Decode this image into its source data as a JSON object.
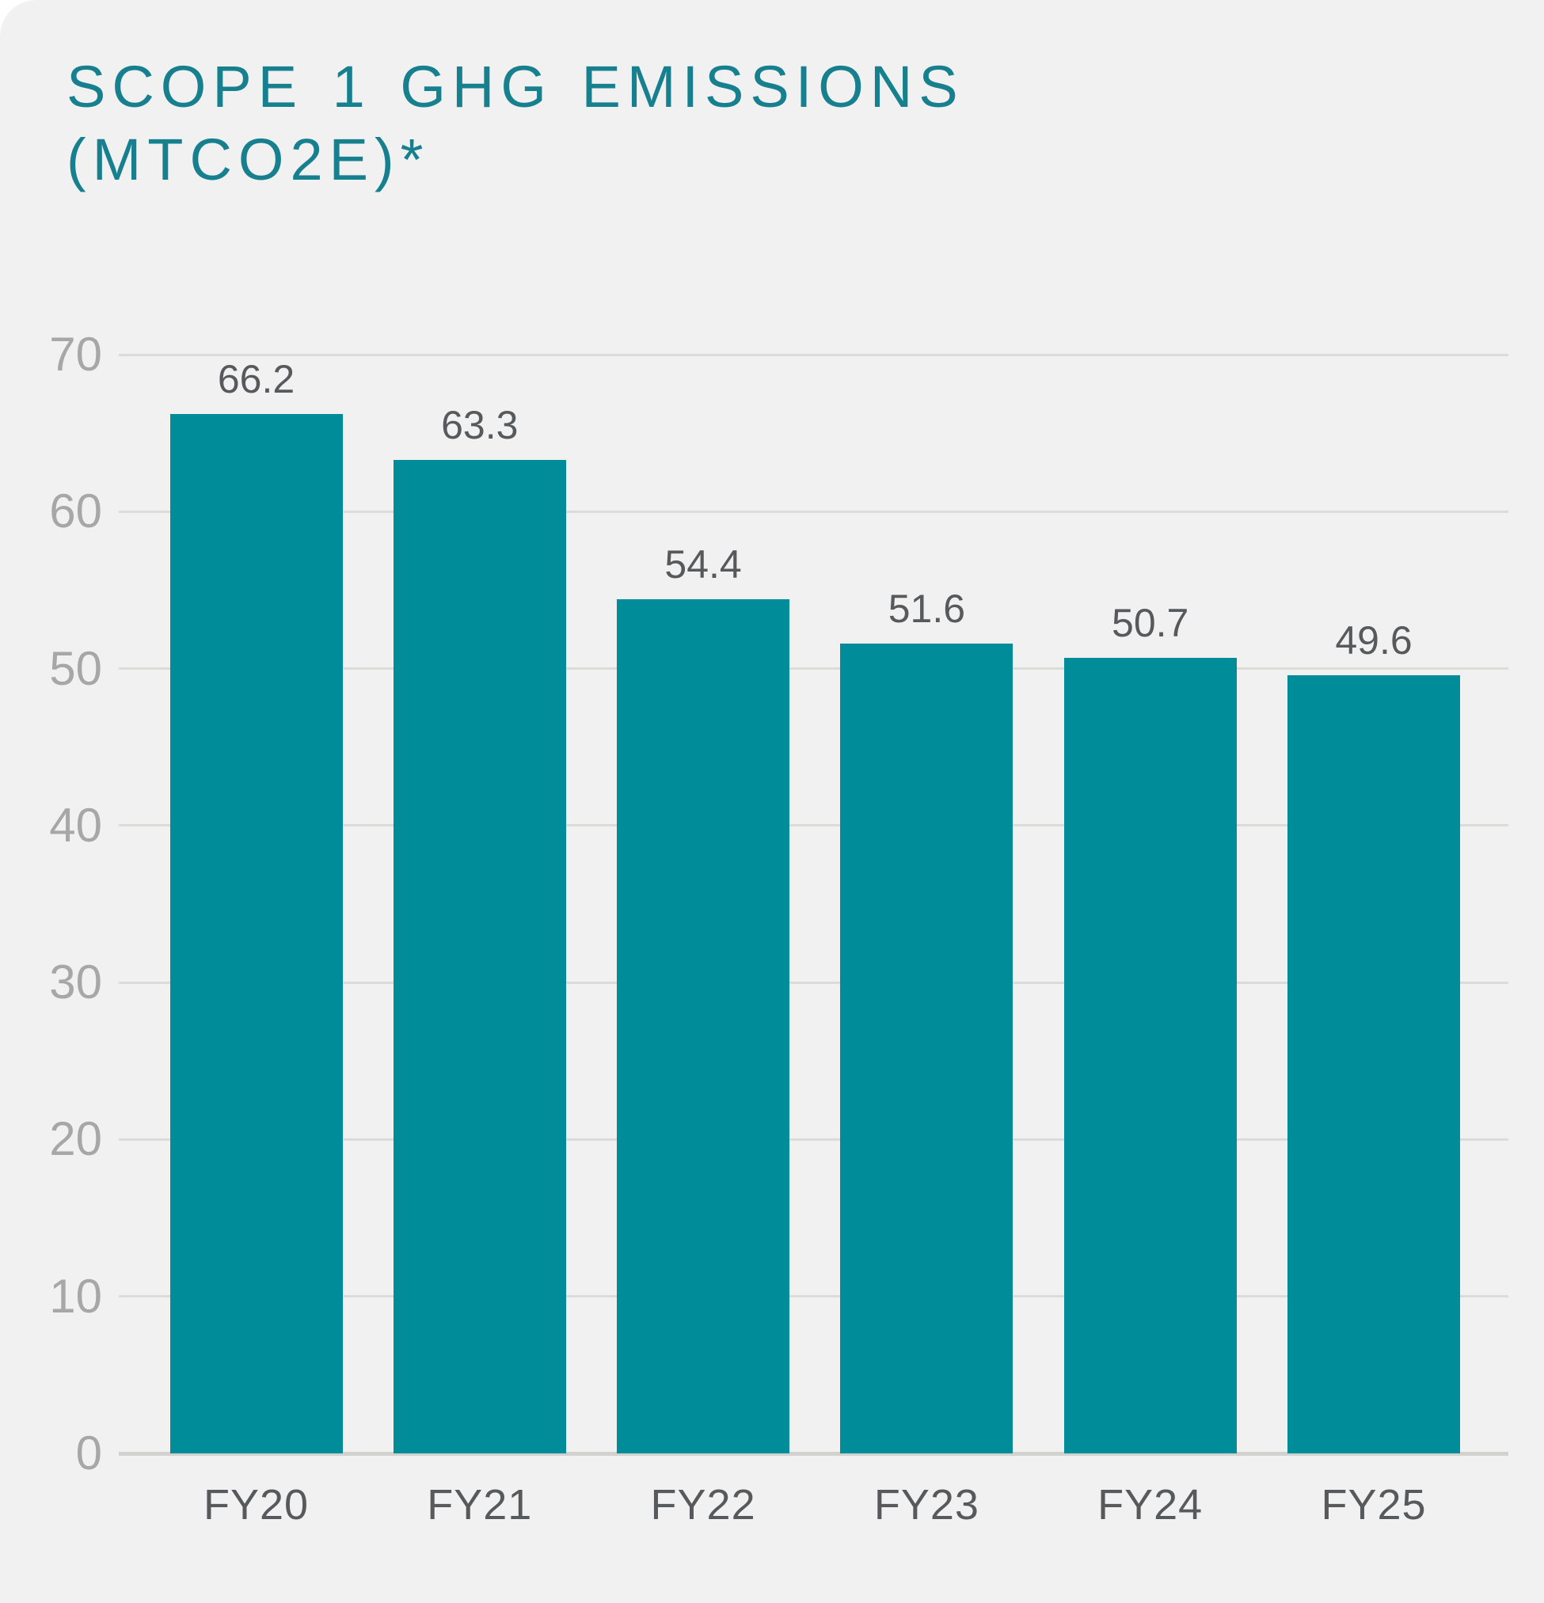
{
  "panel": {
    "background_color": "#F1F1F2",
    "page_background_color": "#FFFFFF"
  },
  "title": {
    "line1": "SCOPE 1 GHG EMISSIONS",
    "line2": "(MTCO2E)*",
    "color": "#17808E"
  },
  "chart_data": {
    "type": "bar",
    "title": "SCOPE 1 GHG EMISSIONS (MTCO2E)*",
    "categories": [
      "FY20",
      "FY21",
      "FY22",
      "FY23",
      "FY24",
      "FY25"
    ],
    "values": [
      66.2,
      63.3,
      54.4,
      51.6,
      50.7,
      49.6
    ],
    "value_labels": [
      "66.2",
      "63.3",
      "54.4",
      "51.6",
      "50.7",
      "49.6"
    ],
    "xlabel": "",
    "ylabel": "",
    "ylim": [
      0,
      70
    ],
    "yticks": [
      0,
      10,
      20,
      30,
      40,
      50,
      60,
      70
    ],
    "grid": "horizontal",
    "legend_position": "none",
    "bar_color": "#008C99",
    "gridline_color": "#DBDBDA",
    "baseline_color": "#D1D1D0",
    "ytick_label_color": "#A7A7A7",
    "value_label_color": "#58595B",
    "category_label_color": "#58595B"
  }
}
